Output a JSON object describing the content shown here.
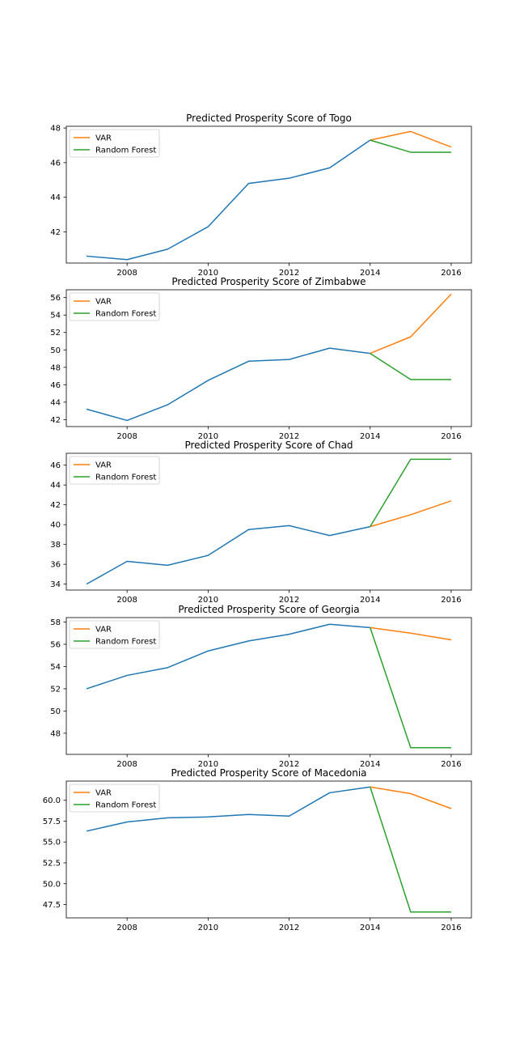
{
  "colors": {
    "history": "#1f77b4",
    "var": "#ff7f0e",
    "random_forest": "#2ca02c"
  },
  "chart_data": [
    {
      "type": "line",
      "title": "Predicted Prosperity Score of Togo",
      "xlim": [
        2006.5,
        2016.5
      ],
      "ylim": [
        40.2,
        48.1
      ],
      "xticks": [
        2008,
        2010,
        2012,
        2014,
        2016
      ],
      "yticks": [
        42,
        44,
        46,
        48
      ],
      "ytick_labels": [
        "42",
        "44",
        "46",
        "48"
      ],
      "legend": {
        "position": "upper left",
        "entries": [
          "VAR",
          "Random Forest"
        ]
      },
      "series": [
        {
          "x": [
            2007,
            2008,
            2009,
            2010,
            2011,
            2012,
            2013,
            2014
          ],
          "y": [
            40.6,
            40.4,
            41.0,
            42.3,
            44.8,
            45.1,
            45.7,
            47.3
          ],
          "color": "#1f77b4"
        },
        {
          "name": "VAR",
          "x": [
            2014,
            2015,
            2016
          ],
          "y": [
            47.3,
            47.8,
            46.9
          ],
          "color": "#ff7f0e"
        },
        {
          "name": "Random Forest",
          "x": [
            2014,
            2015,
            2016
          ],
          "y": [
            47.3,
            46.6,
            46.6
          ],
          "color": "#2ca02c"
        }
      ]
    },
    {
      "type": "line",
      "title": "Predicted Prosperity Score of Zimbabwe",
      "xlim": [
        2006.5,
        2016.5
      ],
      "ylim": [
        41.2,
        56.9
      ],
      "xticks": [
        2008,
        2010,
        2012,
        2014,
        2016
      ],
      "yticks": [
        42,
        44,
        46,
        48,
        50,
        52,
        54,
        56
      ],
      "ytick_labels": [
        "42",
        "44",
        "46",
        "48",
        "50",
        "52",
        "54",
        "56"
      ],
      "legend": {
        "position": "upper left",
        "entries": [
          "VAR",
          "Random Forest"
        ]
      },
      "series": [
        {
          "x": [
            2007,
            2008,
            2009,
            2010,
            2011,
            2012,
            2013,
            2014
          ],
          "y": [
            43.2,
            41.9,
            43.7,
            46.5,
            48.7,
            48.9,
            50.2,
            49.6
          ],
          "color": "#1f77b4"
        },
        {
          "name": "VAR",
          "x": [
            2014,
            2015,
            2016
          ],
          "y": [
            49.6,
            51.5,
            56.4
          ],
          "color": "#ff7f0e"
        },
        {
          "name": "Random Forest",
          "x": [
            2014,
            2015,
            2016
          ],
          "y": [
            49.6,
            46.6,
            46.6
          ],
          "color": "#2ca02c"
        }
      ]
    },
    {
      "type": "line",
      "title": "Predicted Prosperity Score of Chad",
      "xlim": [
        2006.5,
        2016.5
      ],
      "ylim": [
        33.4,
        47.2
      ],
      "xticks": [
        2008,
        2010,
        2012,
        2014,
        2016
      ],
      "yticks": [
        34,
        36,
        38,
        40,
        42,
        44,
        46
      ],
      "ytick_labels": [
        "34",
        "36",
        "38",
        "40",
        "42",
        "44",
        "46"
      ],
      "legend": {
        "position": "upper left",
        "entries": [
          "VAR",
          "Random Forest"
        ]
      },
      "series": [
        {
          "x": [
            2007,
            2008,
            2009,
            2010,
            2011,
            2012,
            2013,
            2014
          ],
          "y": [
            34.0,
            36.3,
            35.9,
            36.9,
            39.5,
            39.9,
            38.9,
            39.8
          ],
          "color": "#1f77b4"
        },
        {
          "name": "VAR",
          "x": [
            2014,
            2015,
            2016
          ],
          "y": [
            39.8,
            41.0,
            42.4
          ],
          "color": "#ff7f0e"
        },
        {
          "name": "Random Forest",
          "x": [
            2014,
            2015,
            2016
          ],
          "y": [
            39.8,
            46.6,
            46.6
          ],
          "color": "#2ca02c"
        }
      ]
    },
    {
      "type": "line",
      "title": "Predicted Prosperity Score of Georgia",
      "xlim": [
        2006.5,
        2016.5
      ],
      "ylim": [
        46.1,
        58.4
      ],
      "xticks": [
        2008,
        2010,
        2012,
        2014,
        2016
      ],
      "yticks": [
        48,
        50,
        52,
        54,
        56,
        58
      ],
      "ytick_labels": [
        "48",
        "50",
        "52",
        "54",
        "56",
        "58"
      ],
      "legend": {
        "position": "upper left",
        "entries": [
          "VAR",
          "Random Forest"
        ]
      },
      "series": [
        {
          "x": [
            2007,
            2008,
            2009,
            2010,
            2011,
            2012,
            2013,
            2014
          ],
          "y": [
            52.0,
            53.2,
            53.9,
            55.4,
            56.3,
            56.9,
            57.8,
            57.5
          ],
          "color": "#1f77b4"
        },
        {
          "name": "VAR",
          "x": [
            2014,
            2015,
            2016
          ],
          "y": [
            57.5,
            57.0,
            56.4
          ],
          "color": "#ff7f0e"
        },
        {
          "name": "Random Forest",
          "x": [
            2014,
            2015,
            2016
          ],
          "y": [
            57.5,
            46.7,
            46.7
          ],
          "color": "#2ca02c"
        }
      ]
    },
    {
      "type": "line",
      "title": "Predicted Prosperity Score of Macedonia",
      "xlim": [
        2006.5,
        2016.5
      ],
      "ylim": [
        45.9,
        62.3
      ],
      "xticks": [
        2008,
        2010,
        2012,
        2014,
        2016
      ],
      "yticks": [
        47.5,
        50.0,
        52.5,
        55.0,
        57.5,
        60.0
      ],
      "ytick_labels": [
        "47.5",
        "50.0",
        "52.5",
        "55.0",
        "57.5",
        "60.0"
      ],
      "legend": {
        "position": "upper left",
        "entries": [
          "VAR",
          "Random Forest"
        ]
      },
      "series": [
        {
          "x": [
            2007,
            2008,
            2009,
            2010,
            2011,
            2012,
            2013,
            2014
          ],
          "y": [
            56.3,
            57.4,
            57.9,
            58.0,
            58.3,
            58.1,
            60.9,
            61.6
          ],
          "color": "#1f77b4"
        },
        {
          "name": "VAR",
          "x": [
            2014,
            2015,
            2016
          ],
          "y": [
            61.6,
            60.8,
            59.0
          ],
          "color": "#ff7f0e"
        },
        {
          "name": "Random Forest",
          "x": [
            2014,
            2015,
            2016
          ],
          "y": [
            61.6,
            46.6,
            46.6
          ],
          "color": "#2ca02c"
        }
      ]
    }
  ]
}
